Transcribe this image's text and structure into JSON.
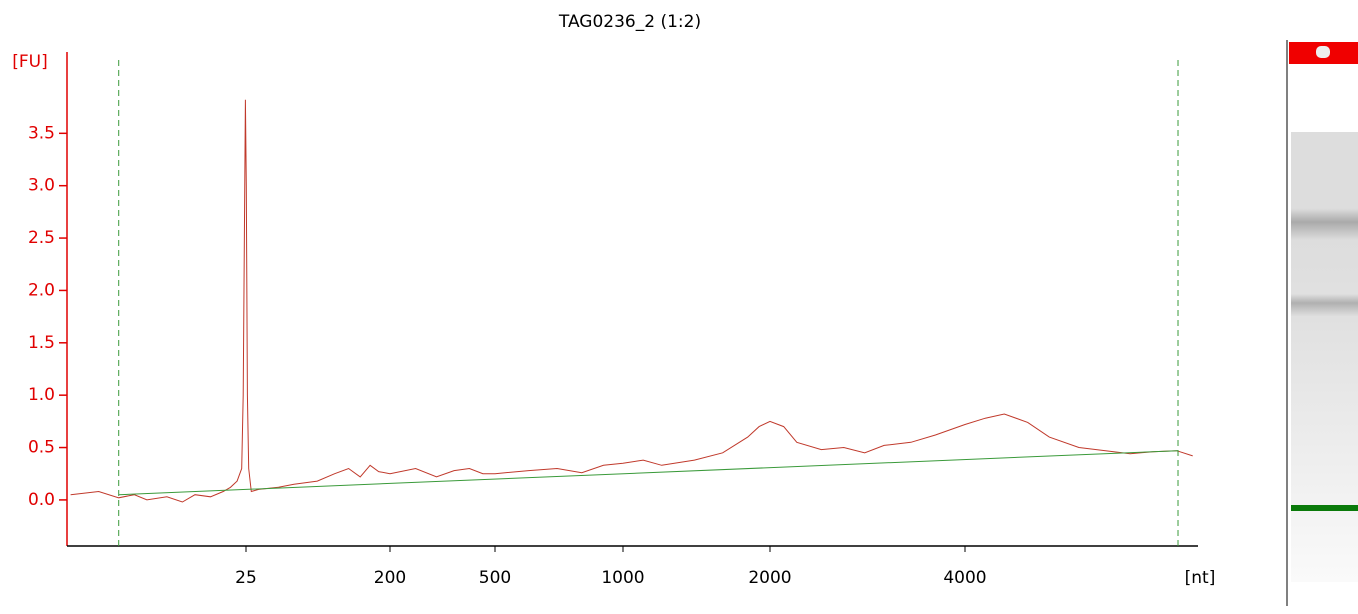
{
  "chart_data": {
    "type": "line",
    "title": "TAG0236_2 (1:2)",
    "y_label": "[FU]",
    "x_label": "[nt]",
    "xlim": [
      1.9,
      9170
    ],
    "ylim": [
      -0.44,
      4.2
    ],
    "xticks": [
      25,
      200,
      500,
      1000,
      2000,
      4000
    ],
    "yticks": [
      {
        "value": 0,
        "label": "0.0"
      },
      0.5,
      {
        "value": 1,
        "label": "1.0"
      },
      1.5,
      {
        "value": 2,
        "label": "2.0"
      },
      2.5,
      {
        "value": 3,
        "label": "3.0"
      },
      3.5
    ],
    "series": [
      {
        "color": "#c0392b",
        "x": [
          2,
          3,
          4,
          5,
          6,
          8,
          10,
          12,
          15,
          18,
          20,
          22,
          23.5,
          24,
          24.5,
          24.8,
          25.1,
          25.5,
          26,
          27,
          30,
          40,
          50,
          70,
          90,
          110,
          130,
          150,
          170,
          200,
          250,
          300,
          350,
          400,
          450,
          500,
          600,
          700,
          800,
          900,
          1000,
          1100,
          1200,
          1400,
          1600,
          1800,
          1900,
          2000,
          2100,
          2200,
          2400,
          2600,
          2800,
          3000,
          3300,
          3600,
          4000,
          4300,
          4600,
          5000,
          5400,
          6000,
          6600,
          7200,
          7800,
          8500,
          9000
        ],
        "values": [
          0.05,
          0.08,
          0.02,
          0.05,
          0.0,
          0.03,
          -0.02,
          0.05,
          0.03,
          0.08,
          0.12,
          0.18,
          0.3,
          1.0,
          2.8,
          3.82,
          3.0,
          1.0,
          0.3,
          0.08,
          0.1,
          0.12,
          0.15,
          0.18,
          0.25,
          0.3,
          0.22,
          0.33,
          0.27,
          0.25,
          0.3,
          0.22,
          0.28,
          0.3,
          0.25,
          0.25,
          0.28,
          0.3,
          0.26,
          0.33,
          0.35,
          0.38,
          0.33,
          0.38,
          0.45,
          0.6,
          0.7,
          0.75,
          0.7,
          0.55,
          0.48,
          0.5,
          0.45,
          0.52,
          0.55,
          0.62,
          0.72,
          0.78,
          0.82,
          0.74,
          0.6,
          0.5,
          0.47,
          0.44,
          0.46,
          0.47,
          0.42
        ]
      },
      {
        "color": "#3a9a3a",
        "x": [
          4,
          8540
        ],
        "values": [
          0.05,
          0.47
        ]
      }
    ]
  }
}
